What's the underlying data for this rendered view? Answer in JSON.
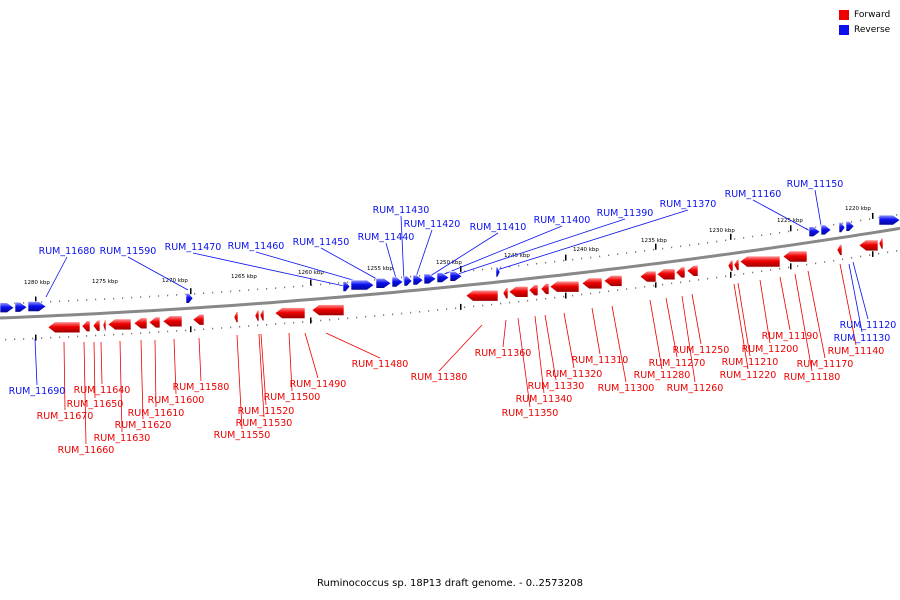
{
  "legend": {
    "forward": {
      "label": "Forward",
      "color": "#ee0000"
    },
    "reverse": {
      "label": "Reverse",
      "color": "#0a10ee"
    }
  },
  "caption": "Ruminococcus sp. 18P13 draft genome. - 0..2573208",
  "track_color": "#888888",
  "kbp_ticks": [
    "1280 kbp",
    "1275 kbp",
    "1270 kbp",
    "1265 kbp",
    "1260 kbp",
    "1255 kbp",
    "1250 kbp",
    "1245 kbp",
    "1240 kbp",
    "1235 kbp",
    "1230 kbp",
    "1225 kbp",
    "1220 kbp"
  ],
  "reverse_genes": [
    "RUM_11690",
    "RUM_11680",
    "RUM_11590",
    "RUM_11470",
    "RUM_11460",
    "RUM_11450",
    "RUM_11440",
    "RUM_11430",
    "RUM_11420",
    "RUM_11410",
    "RUM_11400",
    "RUM_11390",
    "RUM_11370",
    "RUM_11160",
    "RUM_11150",
    "RUM_11130",
    "RUM_11120"
  ],
  "forward_genes": [
    "RUM_11670",
    "RUM_11660",
    "RUM_11650",
    "RUM_11640",
    "RUM_11630",
    "RUM_11620",
    "RUM_11610",
    "RUM_11600",
    "RUM_11580",
    "RUM_11550",
    "RUM_11530",
    "RUM_11520",
    "RUM_11500",
    "RUM_11490",
    "RUM_11480",
    "RUM_11380",
    "RUM_11360",
    "RUM_11350",
    "RUM_11340",
    "RUM_11330",
    "RUM_11320",
    "RUM_11310",
    "RUM_11300",
    "RUM_11280",
    "RUM_11270",
    "RUM_11260",
    "RUM_11250",
    "RUM_11220",
    "RUM_11210",
    "RUM_11200",
    "RUM_11190",
    "RUM_11180",
    "RUM_11170",
    "RUM_11140"
  ]
}
